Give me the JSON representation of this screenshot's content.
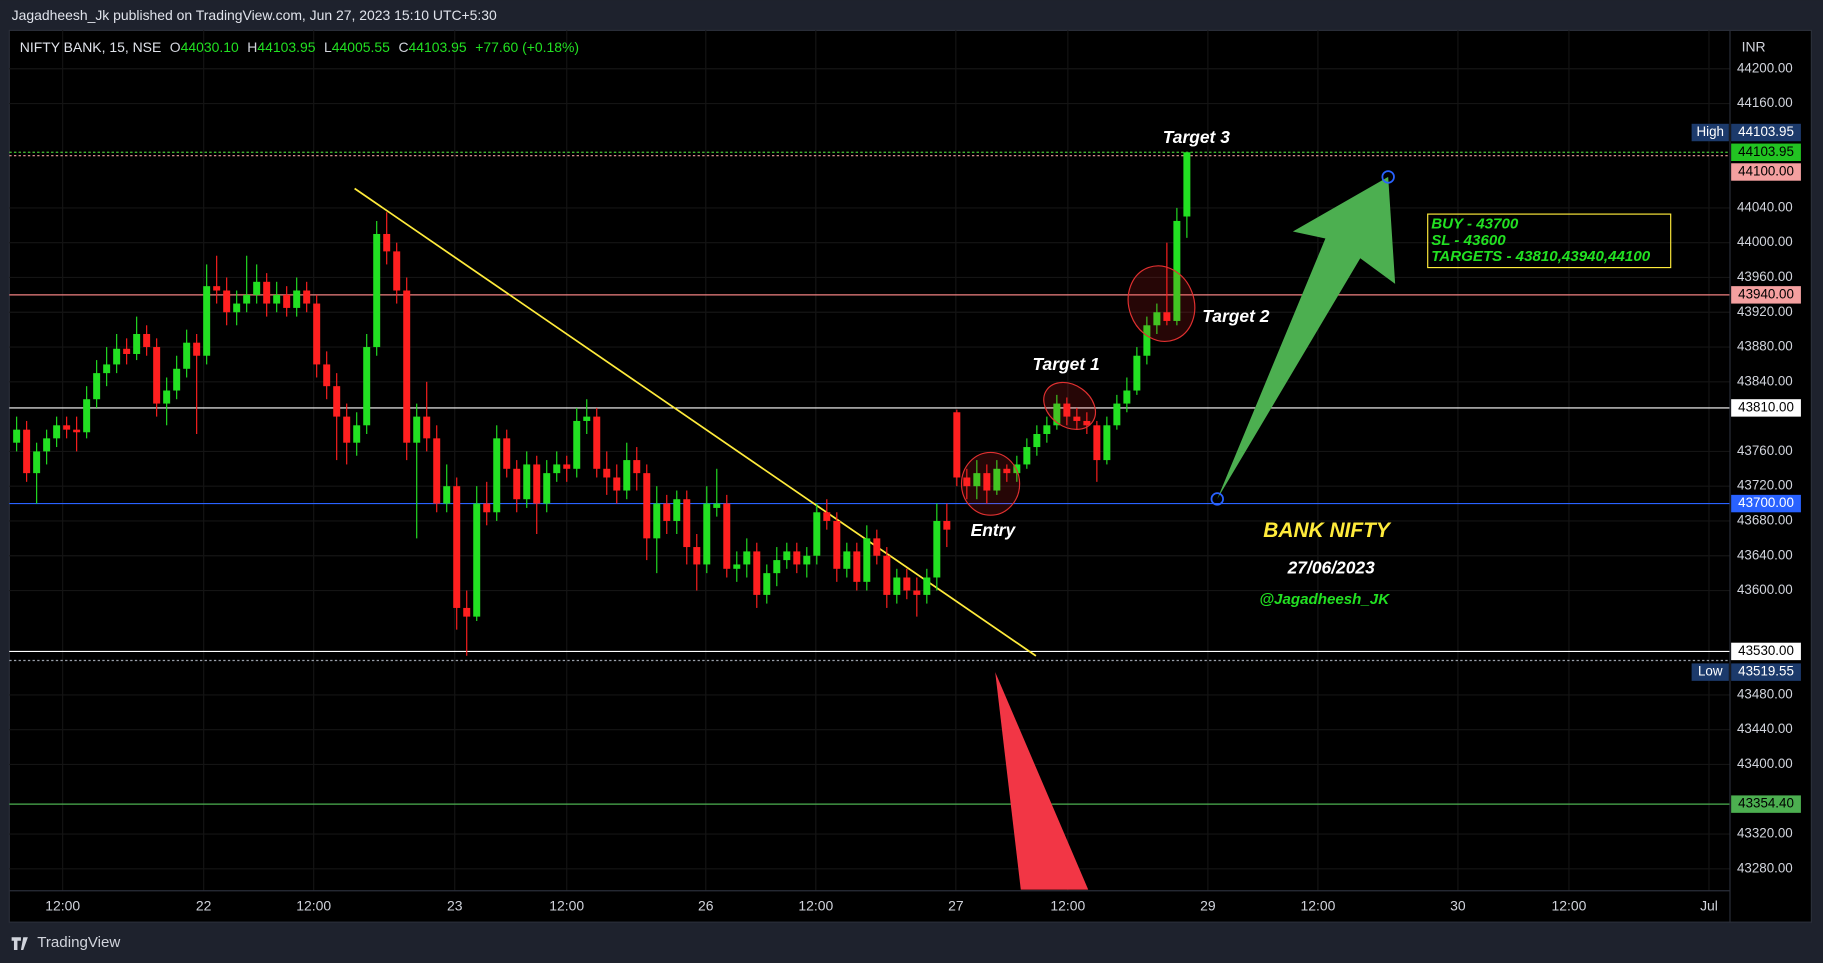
{
  "header": {
    "published": "Jagadheesh_Jk published on TradingView.com, Jun 27, 2023 15:10 UTC+5:30",
    "symbol": "NIFTY BANK, 15, NSE",
    "o_label": "O",
    "o": "44030.10",
    "h_label": "H",
    "h": "44103.95",
    "l_label": "L",
    "l": "44005.55",
    "c_label": "C",
    "c": "44103.95",
    "change": "+77.60 (+0.18%)",
    "currency": "INR",
    "brand": "TradingView"
  },
  "annotations": {
    "target3": "Target 3",
    "target2": "Target 2",
    "target1": "Target 1",
    "entry": "Entry",
    "title": "BANK NIFTY",
    "date": "27/06/2023",
    "author": "@Jagadheesh_JK",
    "plan": [
      "BUY - 43700",
      "SL - 43600",
      "TARGETS - 43810,43940,44100"
    ]
  },
  "chart_data": {
    "type": "candlestick",
    "up_color": "#22e022",
    "down_color": "#ff1f1f",
    "grid": true,
    "ylim": [
      43218.7,
      44244.1
    ],
    "xlim": [
      -0.5,
      171.3
    ],
    "yticks": [
      {
        "value": 44200,
        "label": "44200.00"
      },
      {
        "value": 44160,
        "label": "44160.00"
      },
      {
        "value": 44040,
        "label": "44040.00"
      },
      {
        "value": 44000,
        "label": "44000.00"
      },
      {
        "value": 43960,
        "label": "43960.00"
      },
      {
        "value": 43920,
        "label": "43920.00"
      },
      {
        "value": 43880,
        "label": "43880.00"
      },
      {
        "value": 43840,
        "label": "43840.00"
      },
      {
        "value": 43760,
        "label": "43760.00"
      },
      {
        "value": 43720,
        "label": "43720.00"
      },
      {
        "value": 43680,
        "label": "43680.00"
      },
      {
        "value": 43640,
        "label": "43640.00"
      },
      {
        "value": 43600,
        "label": "43600.00"
      },
      {
        "value": 43480,
        "label": "43480.00"
      },
      {
        "value": 43440,
        "label": "43440.00"
      },
      {
        "value": 43400,
        "label": "43400.00"
      },
      {
        "value": 43320,
        "label": "43320.00"
      },
      {
        "value": 43280,
        "label": "43280.00"
      }
    ],
    "xticks": [
      {
        "value": 4.6,
        "label": "12:00"
      },
      {
        "value": 18.7,
        "label": "22"
      },
      {
        "value": 29.7,
        "label": "12:00"
      },
      {
        "value": 43.8,
        "label": "23"
      },
      {
        "value": 55,
        "label": "12:00"
      },
      {
        "value": 68.9,
        "label": "26"
      },
      {
        "value": 79.9,
        "label": "12:00"
      },
      {
        "value": 93.9,
        "label": "27"
      },
      {
        "value": 105.1,
        "label": "12:00"
      },
      {
        "value": 119.1,
        "label": "29"
      },
      {
        "value": 130.1,
        "label": "12:00"
      },
      {
        "value": 144.1,
        "label": "30"
      },
      {
        "value": 155.2,
        "label": "12:00"
      },
      {
        "value": 169.2,
        "label": "Jul"
      }
    ],
    "levels": [
      {
        "price": 44103.95,
        "tag": "High",
        "label": "44103.95",
        "bg": "#1c3a6b",
        "text": "#ffffff",
        "line": "#e08080",
        "dashed": true
      },
      {
        "price": 44103.95,
        "label": "44103.95",
        "bg": "#22c322",
        "text": "#000000",
        "line": "#22c322",
        "dashed": true
      },
      {
        "price": 44100,
        "label": "44100.00",
        "bg": "#f4a0a0",
        "text": "#000000",
        "line": "#f4a0a0",
        "dashed": true
      },
      {
        "price": 43940,
        "label": "43940.00",
        "bg": "#f4a0a0",
        "text": "#000000",
        "line": "#f08080",
        "dashed": false
      },
      {
        "price": 43810,
        "label": "43810.00",
        "bg": "#ffffff",
        "text": "#000000",
        "line": "#ffffff",
        "dashed": false
      },
      {
        "price": 43700,
        "label": "43700.00",
        "bg": "#2962ff",
        "text": "#ffffff",
        "line": "#2962ff",
        "dashed": false
      },
      {
        "price": 43530,
        "label": "43530.00",
        "bg": "#ffffff",
        "text": "#000000",
        "line": "#ffffff",
        "dashed": false
      },
      {
        "price": 43519.55,
        "tag": "Low",
        "label": "43519.55",
        "bg": "#1c3a6b",
        "text": "#ffffff",
        "line": "#9aa0aa",
        "dashed": true
      },
      {
        "price": 43354.4,
        "label": "43354.40",
        "bg": "#4caf50",
        "text": "#000000",
        "line": "#4caf50",
        "dashed": false
      }
    ],
    "candles": [
      [
        43770,
        43800,
        43760,
        43785
      ],
      [
        43785,
        43795,
        43725,
        43735
      ],
      [
        43735,
        43770,
        43700,
        43760
      ],
      [
        43760,
        43785,
        43745,
        43775
      ],
      [
        43775,
        43800,
        43765,
        43790
      ],
      [
        43790,
        43800,
        43775,
        43785
      ],
      [
        43785,
        43800,
        43760,
        43782
      ],
      [
        43782,
        43835,
        43775,
        43820
      ],
      [
        43820,
        43865,
        43810,
        43850
      ],
      [
        43850,
        43880,
        43835,
        43860
      ],
      [
        43860,
        43895,
        43850,
        43878
      ],
      [
        43878,
        43890,
        43860,
        43872
      ],
      [
        43872,
        43915,
        43865,
        43895
      ],
      [
        43895,
        43905,
        43870,
        43880
      ],
      [
        43880,
        43890,
        43800,
        43815
      ],
      [
        43815,
        43845,
        43790,
        43830
      ],
      [
        43830,
        43870,
        43820,
        43855
      ],
      [
        43855,
        43900,
        43845,
        43885
      ],
      [
        43885,
        43895,
        43780,
        43870
      ],
      [
        43870,
        43975,
        43860,
        43950
      ],
      [
        43950,
        43985,
        43930,
        43945
      ],
      [
        43945,
        43960,
        43905,
        43920
      ],
      [
        43920,
        43945,
        43905,
        43930
      ],
      [
        43930,
        43985,
        43920,
        43940
      ],
      [
        43940,
        43975,
        43930,
        43955
      ],
      [
        43955,
        43965,
        43915,
        43930
      ],
      [
        43930,
        43955,
        43920,
        43940
      ],
      [
        43940,
        43950,
        43915,
        43925
      ],
      [
        43925,
        43960,
        43915,
        43945
      ],
      [
        43945,
        43955,
        43920,
        43930
      ],
      [
        43930,
        43940,
        43845,
        43860
      ],
      [
        43860,
        43875,
        43820,
        43835
      ],
      [
        43835,
        43850,
        43750,
        43800
      ],
      [
        43800,
        43815,
        43745,
        43770
      ],
      [
        43770,
        43805,
        43755,
        43790
      ],
      [
        43790,
        43895,
        43780,
        43880
      ],
      [
        43880,
        44025,
        43870,
        44010
      ],
      [
        44010,
        44035,
        43975,
        43990
      ],
      [
        43990,
        44000,
        43930,
        43945
      ],
      [
        43945,
        43960,
        43750,
        43770
      ],
      [
        43770,
        43815,
        43660,
        43800
      ],
      [
        43800,
        43840,
        43760,
        43775
      ],
      [
        43775,
        43790,
        43690,
        43700
      ],
      [
        43700,
        43745,
        43690,
        43720
      ],
      [
        43720,
        43730,
        43555,
        43580
      ],
      [
        43580,
        43600,
        43525,
        43570
      ],
      [
        43570,
        43720,
        43565,
        43700
      ],
      [
        43700,
        43725,
        43675,
        43690
      ],
      [
        43690,
        43790,
        43680,
        43775
      ],
      [
        43775,
        43785,
        43730,
        43740
      ],
      [
        43740,
        43750,
        43690,
        43705
      ],
      [
        43705,
        43760,
        43695,
        43745
      ],
      [
        43745,
        43755,
        43665,
        43700
      ],
      [
        43700,
        43750,
        43690,
        43735
      ],
      [
        43735,
        43760,
        43725,
        43745
      ],
      [
        43745,
        43755,
        43725,
        43740
      ],
      [
        43740,
        43810,
        43730,
        43795
      ],
      [
        43795,
        43820,
        43780,
        43800
      ],
      [
        43800,
        43810,
        43730,
        43740
      ],
      [
        43740,
        43760,
        43710,
        43730
      ],
      [
        43730,
        43745,
        43700,
        43715
      ],
      [
        43715,
        43770,
        43705,
        43750
      ],
      [
        43750,
        43765,
        43715,
        43735
      ],
      [
        43735,
        43745,
        43635,
        43660
      ],
      [
        43660,
        43720,
        43620,
        43700
      ],
      [
        43700,
        43710,
        43665,
        43680
      ],
      [
        43680,
        43715,
        43665,
        43705
      ],
      [
        43705,
        43715,
        43630,
        43650
      ],
      [
        43650,
        43665,
        43600,
        43630
      ],
      [
        43630,
        43720,
        43620,
        43700
      ],
      [
        43695,
        43740,
        43685,
        43700
      ],
      [
        43700,
        43710,
        43615,
        43625
      ],
      [
        43625,
        43645,
        43610,
        43630
      ],
      [
        43630,
        43660,
        43615,
        43645
      ],
      [
        43645,
        43655,
        43580,
        43595
      ],
      [
        43595,
        43630,
        43585,
        43620
      ],
      [
        43620,
        43650,
        43605,
        43635
      ],
      [
        43635,
        43655,
        43625,
        43645
      ],
      [
        43645,
        43655,
        43620,
        43630
      ],
      [
        43630,
        43650,
        43615,
        43640
      ],
      [
        43640,
        43700,
        43630,
        43690
      ],
      [
        43690,
        43705,
        43670,
        43680
      ],
      [
        43680,
        43690,
        43610,
        43625
      ],
      [
        43625,
        43655,
        43615,
        43645
      ],
      [
        43645,
        43655,
        43600,
        43610
      ],
      [
        43610,
        43675,
        43600,
        43660
      ],
      [
        43660,
        43670,
        43630,
        43640
      ],
      [
        43640,
        43650,
        43580,
        43595
      ],
      [
        43595,
        43625,
        43585,
        43615
      ],
      [
        43615,
        43625,
        43590,
        43600
      ],
      [
        43600,
        43615,
        43570,
        43595
      ],
      [
        43595,
        43625,
        43585,
        43615
      ],
      [
        43615,
        43700,
        43600,
        43680
      ],
      [
        43680,
        43700,
        43650,
        43670
      ],
      [
        43805,
        43808,
        43720,
        43730
      ],
      [
        43730,
        43740,
        43705,
        43720
      ],
      [
        43720,
        43750,
        43705,
        43735
      ],
      [
        43735,
        43745,
        43700,
        43715
      ],
      [
        43715,
        43750,
        43710,
        43740
      ],
      [
        43740,
        43745,
        43725,
        43735
      ],
      [
        43735,
        43755,
        43725,
        43745
      ],
      [
        43745,
        43775,
        43740,
        43765
      ],
      [
        43765,
        43790,
        43755,
        43780
      ],
      [
        43780,
        43800,
        43770,
        43790
      ],
      [
        43790,
        43825,
        43785,
        43815
      ],
      [
        43815,
        43822,
        43790,
        43800
      ],
      [
        43800,
        43810,
        43785,
        43795
      ],
      [
        43795,
        43805,
        43780,
        43790
      ],
      [
        43790,
        43795,
        43725,
        43750
      ],
      [
        43750,
        43800,
        43745,
        43790
      ],
      [
        43790,
        43825,
        43785,
        43815
      ],
      [
        43815,
        43845,
        43805,
        43830
      ],
      [
        43830,
        43880,
        43825,
        43870
      ],
      [
        43870,
        43915,
        43860,
        43905
      ],
      [
        43905,
        43930,
        43895,
        43920
      ],
      [
        43920,
        44000,
        43905,
        43910
      ],
      [
        43910,
        44040,
        43905,
        44025
      ],
      [
        44030.1,
        44103.95,
        44005.55,
        44103.95
      ]
    ]
  }
}
